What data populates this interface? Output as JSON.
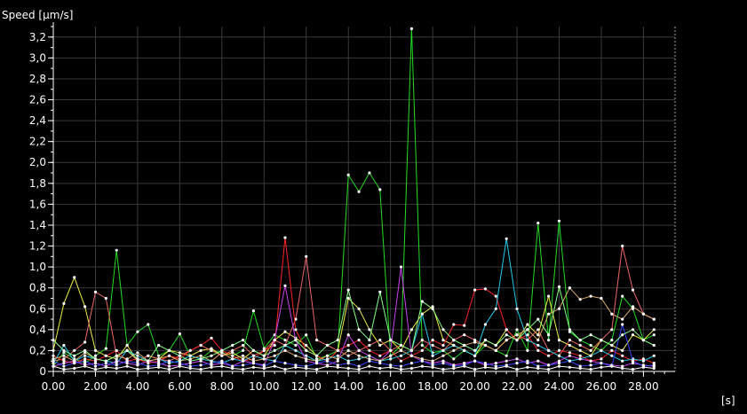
{
  "chart_data": {
    "type": "line",
    "ylabel": "Speed [µm/s]",
    "xlabel": "[s]",
    "xlim": [
      0,
      29.5
    ],
    "ylim": [
      0,
      3.3
    ],
    "grid": true,
    "x_ticks": [
      {
        "value": 0,
        "label": "0.00"
      },
      {
        "value": 2,
        "label": "2.00"
      },
      {
        "value": 4,
        "label": "4.00"
      },
      {
        "value": 6,
        "label": "6.00"
      },
      {
        "value": 8,
        "label": "8.00"
      },
      {
        "value": 10,
        "label": "10.00"
      },
      {
        "value": 12,
        "label": "12.00"
      },
      {
        "value": 14,
        "label": "14.00"
      },
      {
        "value": 16,
        "label": "16.00"
      },
      {
        "value": 18,
        "label": "18.00"
      },
      {
        "value": 20,
        "label": "20.00"
      },
      {
        "value": 22,
        "label": "22.00"
      },
      {
        "value": 24,
        "label": "24.00"
      },
      {
        "value": 26,
        "label": "26.00"
      },
      {
        "value": 28,
        "label": "28.00"
      }
    ],
    "y_ticks": [
      {
        "value": 0,
        "label": "0"
      },
      {
        "value": 0.2,
        "label": "0,2"
      },
      {
        "value": 0.4,
        "label": "0,4"
      },
      {
        "value": 0.6,
        "label": "0,6"
      },
      {
        "value": 0.8,
        "label": "0,8"
      },
      {
        "value": 1.0,
        "label": "1,0"
      },
      {
        "value": 1.2,
        "label": "1,2"
      },
      {
        "value": 1.4,
        "label": "1,4"
      },
      {
        "value": 1.6,
        "label": "1,6"
      },
      {
        "value": 1.8,
        "label": "1,8"
      },
      {
        "value": 2.0,
        "label": "2,0"
      },
      {
        "value": 2.2,
        "label": "2,2"
      },
      {
        "value": 2.4,
        "label": "2,4"
      },
      {
        "value": 2.6,
        "label": "2,6"
      },
      {
        "value": 2.8,
        "label": "2,8"
      },
      {
        "value": 3.0,
        "label": "3,0"
      },
      {
        "value": 3.2,
        "label": "3,2"
      }
    ],
    "x": [
      0.0,
      0.5,
      1.0,
      1.5,
      2.0,
      2.5,
      3.0,
      3.5,
      4.0,
      4.5,
      5.0,
      5.5,
      6.0,
      6.5,
      7.0,
      7.5,
      8.0,
      8.5,
      9.0,
      9.5,
      10.0,
      10.5,
      11.0,
      11.5,
      12.0,
      12.5,
      13.0,
      13.5,
      14.0,
      14.5,
      15.0,
      15.5,
      16.0,
      16.5,
      17.0,
      17.5,
      18.0,
      18.5,
      19.0,
      19.5,
      20.0,
      20.5,
      21.0,
      21.5,
      22.0,
      22.5,
      23.0,
      23.5,
      24.0,
      24.5,
      25.0,
      25.5,
      26.0,
      26.5,
      27.0,
      27.5,
      28.0,
      28.5
    ],
    "series": [
      {
        "color": "#22dd22",
        "values": [
          0.05,
          0.18,
          0.12,
          0.08,
          0.15,
          0.22,
          1.16,
          0.25,
          0.38,
          0.45,
          0.15,
          0.2,
          0.36,
          0.15,
          0.12,
          0.2,
          0.18,
          0.15,
          0.2,
          0.58,
          0.22,
          0.35,
          0.3,
          0.25,
          0.35,
          0.12,
          0.15,
          0.2,
          1.88,
          1.72,
          1.9,
          1.74,
          0.15,
          0.25,
          3.28,
          0.25,
          0.18,
          0.2,
          0.12,
          0.2,
          0.15,
          0.25,
          0.2,
          0.15,
          0.4,
          0.2,
          1.42,
          0.3,
          1.44,
          0.38,
          0.3,
          0.25,
          0.2,
          0.3,
          0.72,
          0.6,
          0.3,
          0.35
        ]
      },
      {
        "color": "#eeee44",
        "values": [
          0.2,
          0.65,
          0.9,
          0.62,
          0.2,
          0.15,
          0.12,
          0.25,
          0.1,
          0.15,
          0.12,
          0.2,
          0.18,
          0.15,
          0.2,
          0.22,
          0.15,
          0.18,
          0.12,
          0.2,
          0.15,
          0.3,
          0.38,
          0.32,
          0.25,
          0.15,
          0.1,
          0.2,
          0.7,
          0.6,
          0.4,
          0.25,
          0.3,
          0.2,
          0.4,
          0.55,
          0.62,
          0.3,
          0.25,
          0.2,
          0.15,
          0.3,
          0.25,
          0.4,
          0.3,
          0.45,
          0.35,
          0.72,
          0.3,
          0.25,
          0.2,
          0.15,
          0.3,
          0.25,
          0.2,
          0.35,
          0.3,
          0.4
        ]
      },
      {
        "color": "#ee6666",
        "values": [
          0.1,
          0.12,
          0.2,
          0.28,
          0.76,
          0.7,
          0.15,
          0.2,
          0.1,
          0.15,
          0.12,
          0.1,
          0.15,
          0.2,
          0.25,
          0.2,
          0.15,
          0.2,
          0.25,
          0.15,
          0.2,
          0.3,
          0.25,
          0.5,
          1.1,
          0.3,
          0.25,
          0.2,
          0.15,
          0.2,
          0.25,
          0.3,
          0.2,
          0.25,
          0.2,
          0.3,
          0.25,
          0.2,
          0.3,
          0.35,
          0.3,
          0.25,
          0.2,
          0.3,
          0.35,
          0.3,
          0.4,
          0.2,
          0.15,
          0.3,
          0.25,
          0.2,
          0.3,
          0.4,
          1.2,
          0.78,
          0.55,
          0.5
        ]
      },
      {
        "color": "#ff2222",
        "values": [
          0.15,
          0.1,
          0.08,
          0.12,
          0.1,
          0.15,
          0.2,
          0.1,
          0.12,
          0.08,
          0.1,
          0.15,
          0.12,
          0.2,
          0.25,
          0.32,
          0.2,
          0.15,
          0.1,
          0.12,
          0.2,
          0.25,
          1.28,
          0.4,
          0.2,
          0.15,
          0.1,
          0.2,
          0.25,
          0.3,
          0.2,
          0.15,
          0.2,
          0.1,
          0.15,
          0.2,
          0.3,
          0.25,
          0.45,
          0.44,
          0.78,
          0.79,
          0.72,
          0.4,
          0.3,
          0.35,
          0.2,
          0.15,
          0.2,
          0.18,
          0.15,
          0.1,
          0.12,
          0.2,
          0.15,
          0.1,
          0.12,
          0.08
        ]
      },
      {
        "color": "#22ccee",
        "values": [
          0.08,
          0.25,
          0.1,
          0.15,
          0.12,
          0.1,
          0.08,
          0.2,
          0.15,
          0.1,
          0.12,
          0.08,
          0.1,
          0.15,
          0.12,
          0.1,
          0.08,
          0.12,
          0.1,
          0.15,
          0.12,
          0.1,
          0.25,
          0.2,
          0.15,
          0.1,
          0.12,
          0.15,
          0.1,
          0.12,
          0.15,
          0.1,
          0.12,
          0.15,
          0.2,
          0.55,
          0.15,
          0.2,
          0.25,
          0.2,
          0.15,
          0.45,
          0.6,
          1.27,
          0.6,
          0.3,
          0.25,
          0.2,
          0.15,
          0.1,
          0.12,
          0.15,
          0.2,
          0.15,
          0.1,
          0.12,
          0.1,
          0.15
        ]
      },
      {
        "color": "#cc44ee",
        "values": [
          0.05,
          0.08,
          0.1,
          0.06,
          0.08,
          0.05,
          0.1,
          0.08,
          0.06,
          0.1,
          0.08,
          0.05,
          0.06,
          0.08,
          0.1,
          0.06,
          0.08,
          0.05,
          0.1,
          0.08,
          0.06,
          0.3,
          0.82,
          0.3,
          0.1,
          0.08,
          0.06,
          0.1,
          0.35,
          0.2,
          0.15,
          0.1,
          0.2,
          1.0,
          0.15,
          0.1,
          0.08,
          0.1,
          0.06,
          0.08,
          0.1,
          0.06,
          0.08,
          0.1,
          0.12,
          0.08,
          0.1,
          0.06,
          0.1,
          0.15,
          0.12,
          0.1,
          0.08,
          0.06,
          0.05,
          0.08,
          0.06,
          0.05
        ]
      },
      {
        "color": "#3344ff",
        "values": [
          0.1,
          0.05,
          0.08,
          0.1,
          0.05,
          0.08,
          0.06,
          0.1,
          0.08,
          0.05,
          0.06,
          0.1,
          0.08,
          0.05,
          0.06,
          0.08,
          0.1,
          0.05,
          0.06,
          0.08,
          0.05,
          0.1,
          0.08,
          0.06,
          0.05,
          0.08,
          0.1,
          0.06,
          0.08,
          0.05,
          0.1,
          0.08,
          0.06,
          0.05,
          0.08,
          0.1,
          0.06,
          0.08,
          0.05,
          0.06,
          0.1,
          0.08,
          0.05,
          0.06,
          0.08,
          0.1,
          0.05,
          0.06,
          0.08,
          0.1,
          0.05,
          0.06,
          0.08,
          0.05,
          0.45,
          0.1,
          0.05,
          0.06
        ]
      },
      {
        "color": "#ffffff",
        "values": [
          0.05,
          0.02,
          0.03,
          0.05,
          0.02,
          0.04,
          0.03,
          0.05,
          0.02,
          0.03,
          0.04,
          0.02,
          0.05,
          0.03,
          0.02,
          0.04,
          0.05,
          0.03,
          0.02,
          0.04,
          0.03,
          0.05,
          0.02,
          0.04,
          0.03,
          0.02,
          0.05,
          0.04,
          0.03,
          0.02,
          0.05,
          0.03,
          0.04,
          0.02,
          0.03,
          0.05,
          0.04,
          0.02,
          0.03,
          0.05,
          0.02,
          0.04,
          0.03,
          0.05,
          0.02,
          0.04,
          0.03,
          0.02,
          0.05,
          0.04,
          0.03,
          0.02,
          0.04,
          0.05,
          0.03,
          0.02,
          0.04,
          0.03
        ]
      },
      {
        "color": "#ddaa66",
        "values": [
          0.12,
          0.15,
          0.1,
          0.18,
          0.12,
          0.1,
          0.15,
          0.12,
          0.18,
          0.1,
          0.12,
          0.15,
          0.1,
          0.12,
          0.15,
          0.1,
          0.18,
          0.12,
          0.15,
          0.1,
          0.12,
          0.15,
          0.2,
          0.15,
          0.12,
          0.1,
          0.15,
          0.12,
          0.2,
          0.15,
          0.12,
          0.1,
          0.15,
          0.2,
          0.15,
          0.12,
          0.1,
          0.15,
          0.2,
          0.25,
          0.28,
          0.25,
          0.2,
          0.3,
          0.35,
          0.4,
          0.3,
          0.55,
          0.6,
          0.8,
          0.69,
          0.72,
          0.7,
          0.55,
          0.5,
          0.62,
          0.55,
          0.5
        ]
      },
      {
        "color": "#88ff88",
        "values": [
          0.3,
          0.2,
          0.15,
          0.2,
          0.12,
          0.1,
          0.15,
          0.2,
          0.12,
          0.1,
          0.25,
          0.2,
          0.15,
          0.1,
          0.12,
          0.15,
          0.2,
          0.25,
          0.3,
          0.2,
          0.15,
          0.2,
          0.25,
          0.3,
          0.2,
          0.15,
          0.25,
          0.3,
          0.78,
          0.4,
          0.3,
          0.76,
          0.3,
          0.25,
          0.2,
          0.67,
          0.6,
          0.4,
          0.3,
          0.25,
          0.2,
          0.3,
          0.25,
          0.35,
          0.3,
          0.4,
          0.5,
          0.35,
          0.81,
          0.4,
          0.3,
          0.35,
          0.3,
          0.25,
          0.35,
          0.4,
          0.3,
          0.25
        ]
      }
    ]
  }
}
